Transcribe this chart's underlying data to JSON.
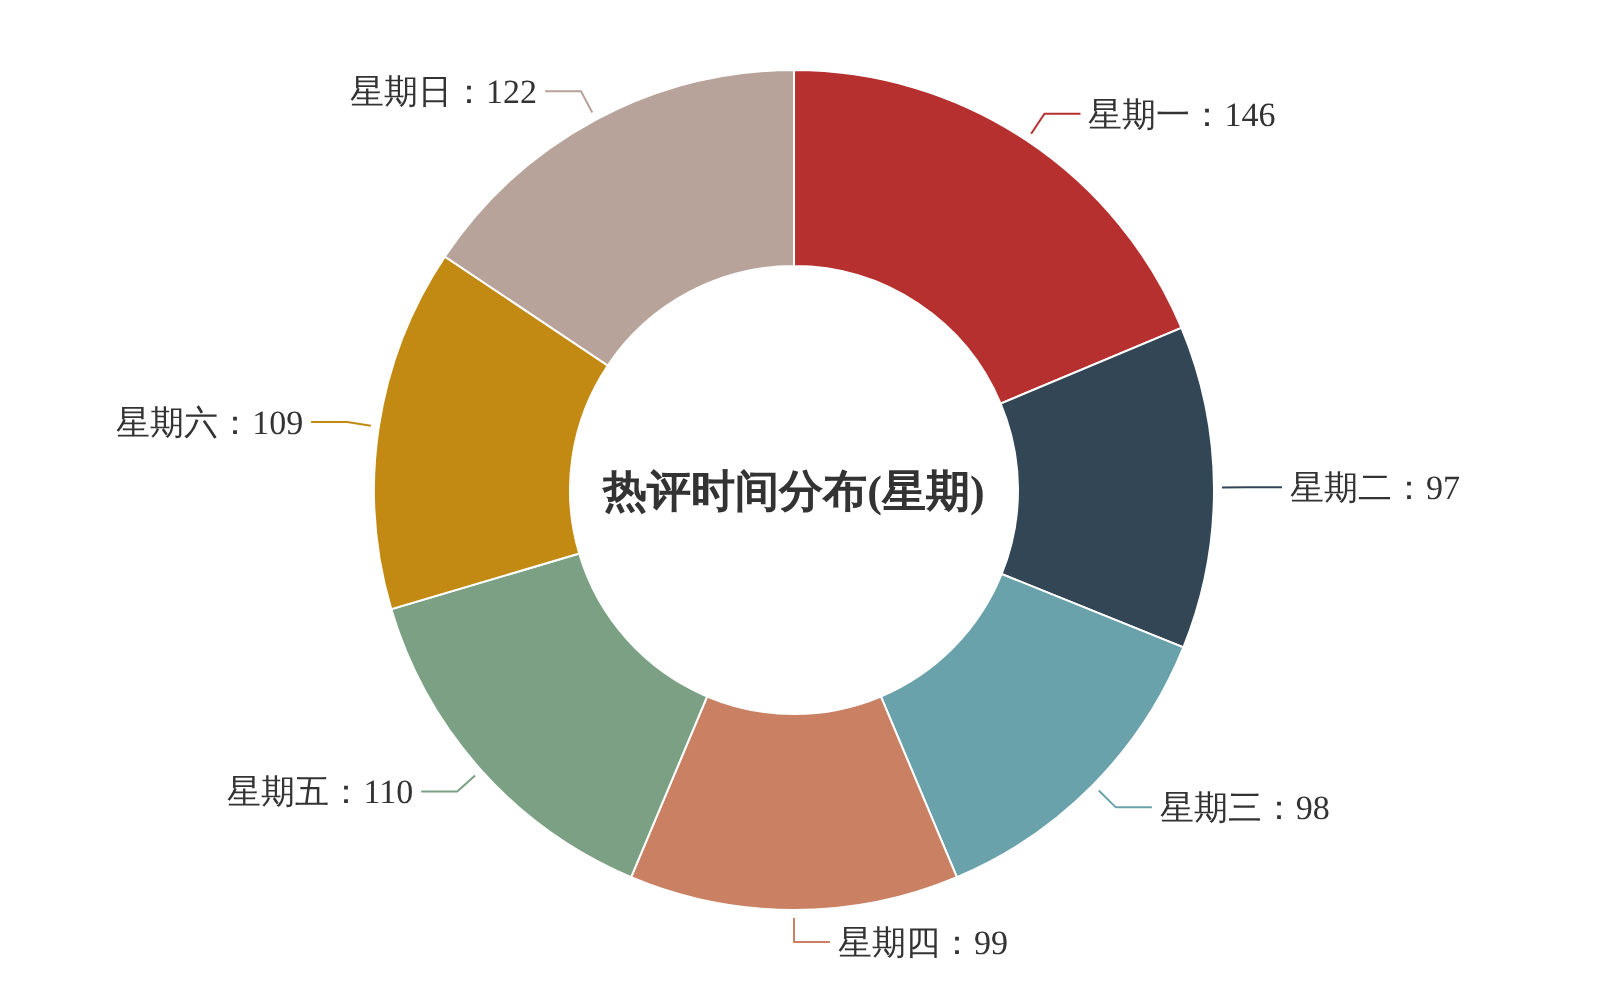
{
  "chart_data": {
    "type": "donut",
    "title": "热评时间分布(星期)",
    "categories": [
      "星期一：146",
      "星期二：97",
      "星期三：98",
      "星期四：99",
      "星期五：110",
      "星期六：109",
      "星期日：122"
    ],
    "values": [
      146,
      97,
      98,
      99,
      110,
      109,
      122
    ],
    "colors": [
      "#b5302e",
      "#334656",
      "#6aa2ab",
      "#c98063",
      "#7ba083",
      "#c28913",
      "#b8a39a"
    ]
  }
}
